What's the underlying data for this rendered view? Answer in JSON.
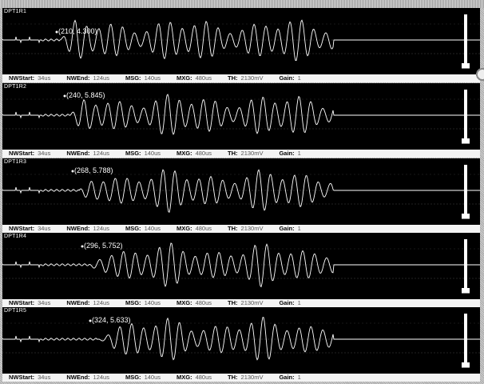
{
  "window": {
    "title": ""
  },
  "labels": {
    "nwstart": "NWStart:",
    "nwend": "NWEnd:",
    "msg": "MSG:",
    "mxg": "MXG:",
    "th": "TH:",
    "gain": "Gain:"
  },
  "channels": [
    {
      "name": "DPT1R1",
      "marker": "(210, 4.300)",
      "status": {
        "nwstart": "34us",
        "nwend": "124us",
        "msg": "140us",
        "mxg": "480us",
        "th": "2130mV",
        "gain": "1"
      },
      "gain_level": 0.05
    },
    {
      "name": "DPT1R2",
      "marker": "(240, 5.845)",
      "status": {
        "nwstart": "34us",
        "nwend": "124us",
        "msg": "140us",
        "mxg": "480us",
        "th": "2130mV",
        "gain": "1"
      },
      "gain_level": 0.05
    },
    {
      "name": "DPT1R3",
      "marker": "(268, 5.788)",
      "status": {
        "nwstart": "34us",
        "nwend": "124us",
        "msg": "140us",
        "mxg": "480us",
        "th": "2130mV",
        "gain": "1"
      },
      "gain_level": 0.05
    },
    {
      "name": "DPT1R4",
      "marker": "(296, 5.752)",
      "status": {
        "nwstart": "34us",
        "nwend": "124us",
        "msg": "140us",
        "mxg": "480us",
        "th": "2130mV",
        "gain": "1"
      },
      "gain_level": 0.05
    },
    {
      "name": "DPT1R5",
      "marker": "(324, 5.633)",
      "status": {
        "nwstart": "34us",
        "nwend": "124us",
        "msg": "140us",
        "mxg": "480us",
        "th": "2130mV",
        "gain": "1"
      },
      "gain_level": 0.05
    }
  ],
  "colors": {
    "plot_bg": "#000000",
    "trace": "#ffffff",
    "status_bg": "#f4f4f4"
  }
}
